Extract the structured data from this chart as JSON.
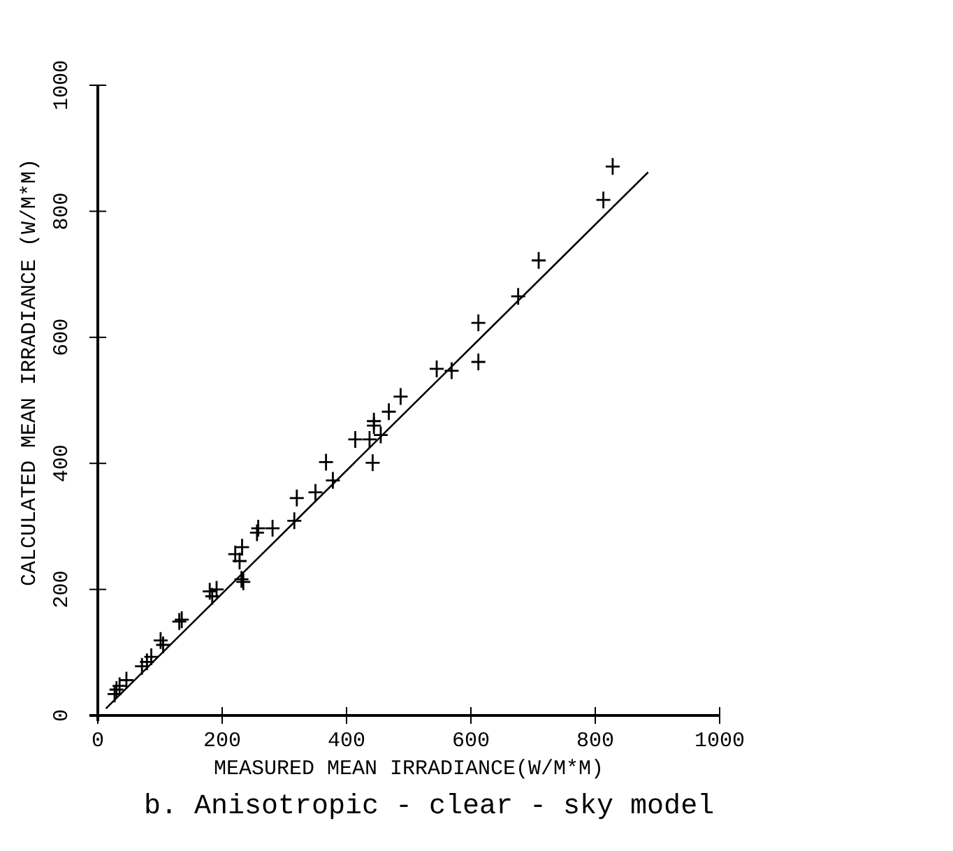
{
  "chart_data": {
    "type": "scatter",
    "title": "b.  Anisotropic - clear - sky model",
    "xlabel": "MEASURED MEAN IRRADIANCE(W/M*M)",
    "ylabel": "CALCULATED MEAN IRRADIANCE (W/M*M)",
    "xlim": [
      0,
      1000
    ],
    "ylim": [
      0,
      1000
    ],
    "xticks": [
      0,
      200,
      400,
      600,
      800,
      1000
    ],
    "yticks": [
      0,
      200,
      400,
      600,
      800,
      1000
    ],
    "grid": false,
    "series": [
      {
        "marker": "cross",
        "color": "#000000",
        "x": [
          27,
          30,
          35,
          46,
          71,
          79,
          86,
          101,
          105,
          131,
          135,
          180,
          184,
          191,
          221,
          228,
          232,
          231,
          234,
          256,
          258,
          281,
          316,
          320,
          350,
          367,
          378,
          414,
          437,
          442,
          444,
          444,
          455,
          468,
          487,
          545,
          569,
          612,
          612,
          676,
          709,
          813,
          828
        ],
        "values": [
          34,
          41,
          47,
          56,
          78,
          85,
          93,
          119,
          112,
          149,
          152,
          197,
          189,
          200,
          256,
          245,
          267,
          216,
          212,
          290,
          297,
          297,
          309,
          345,
          354,
          402,
          373,
          438,
          438,
          401,
          460,
          467,
          445,
          482,
          506,
          550,
          547,
          623,
          561,
          665,
          722,
          818,
          871
        ]
      },
      {
        "type": "line",
        "marker": "none",
        "color": "#000000",
        "x": [
          13,
          885
        ],
        "values": [
          11,
          862
        ]
      }
    ]
  }
}
